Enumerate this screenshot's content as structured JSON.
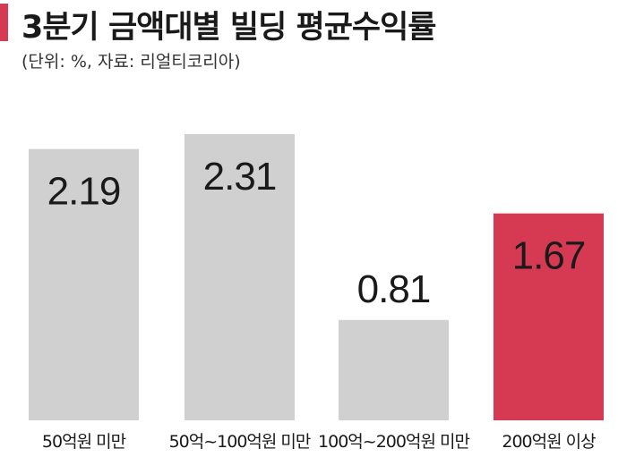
{
  "header": {
    "title": "3분기 금액대별 빌딩 평균수익률",
    "subtitle": "(단위: %, 자료: 리얼티코리아)"
  },
  "colors": {
    "accent": "#d63a52",
    "bar_default": "#d0d0d0",
    "bar_highlight": "#d63a52"
  },
  "chart_data": {
    "type": "bar",
    "title": "3분기 금액대별 빌딩 평균수익률",
    "subtitle": "(단위: %, 자료: 리얼티코리아)",
    "categories": [
      "50억원 미만",
      "50억~100억원 미만",
      "100억~200억원 미만",
      "200억원 이상"
    ],
    "values": [
      2.19,
      2.31,
      0.81,
      1.67
    ],
    "value_labels": [
      "2.19",
      "2.31",
      "0.81",
      "1.67"
    ],
    "highlight_index": 3,
    "xlabel": "",
    "ylabel": "",
    "ylim": [
      0,
      2.31
    ],
    "grid": false,
    "legend": "none"
  }
}
